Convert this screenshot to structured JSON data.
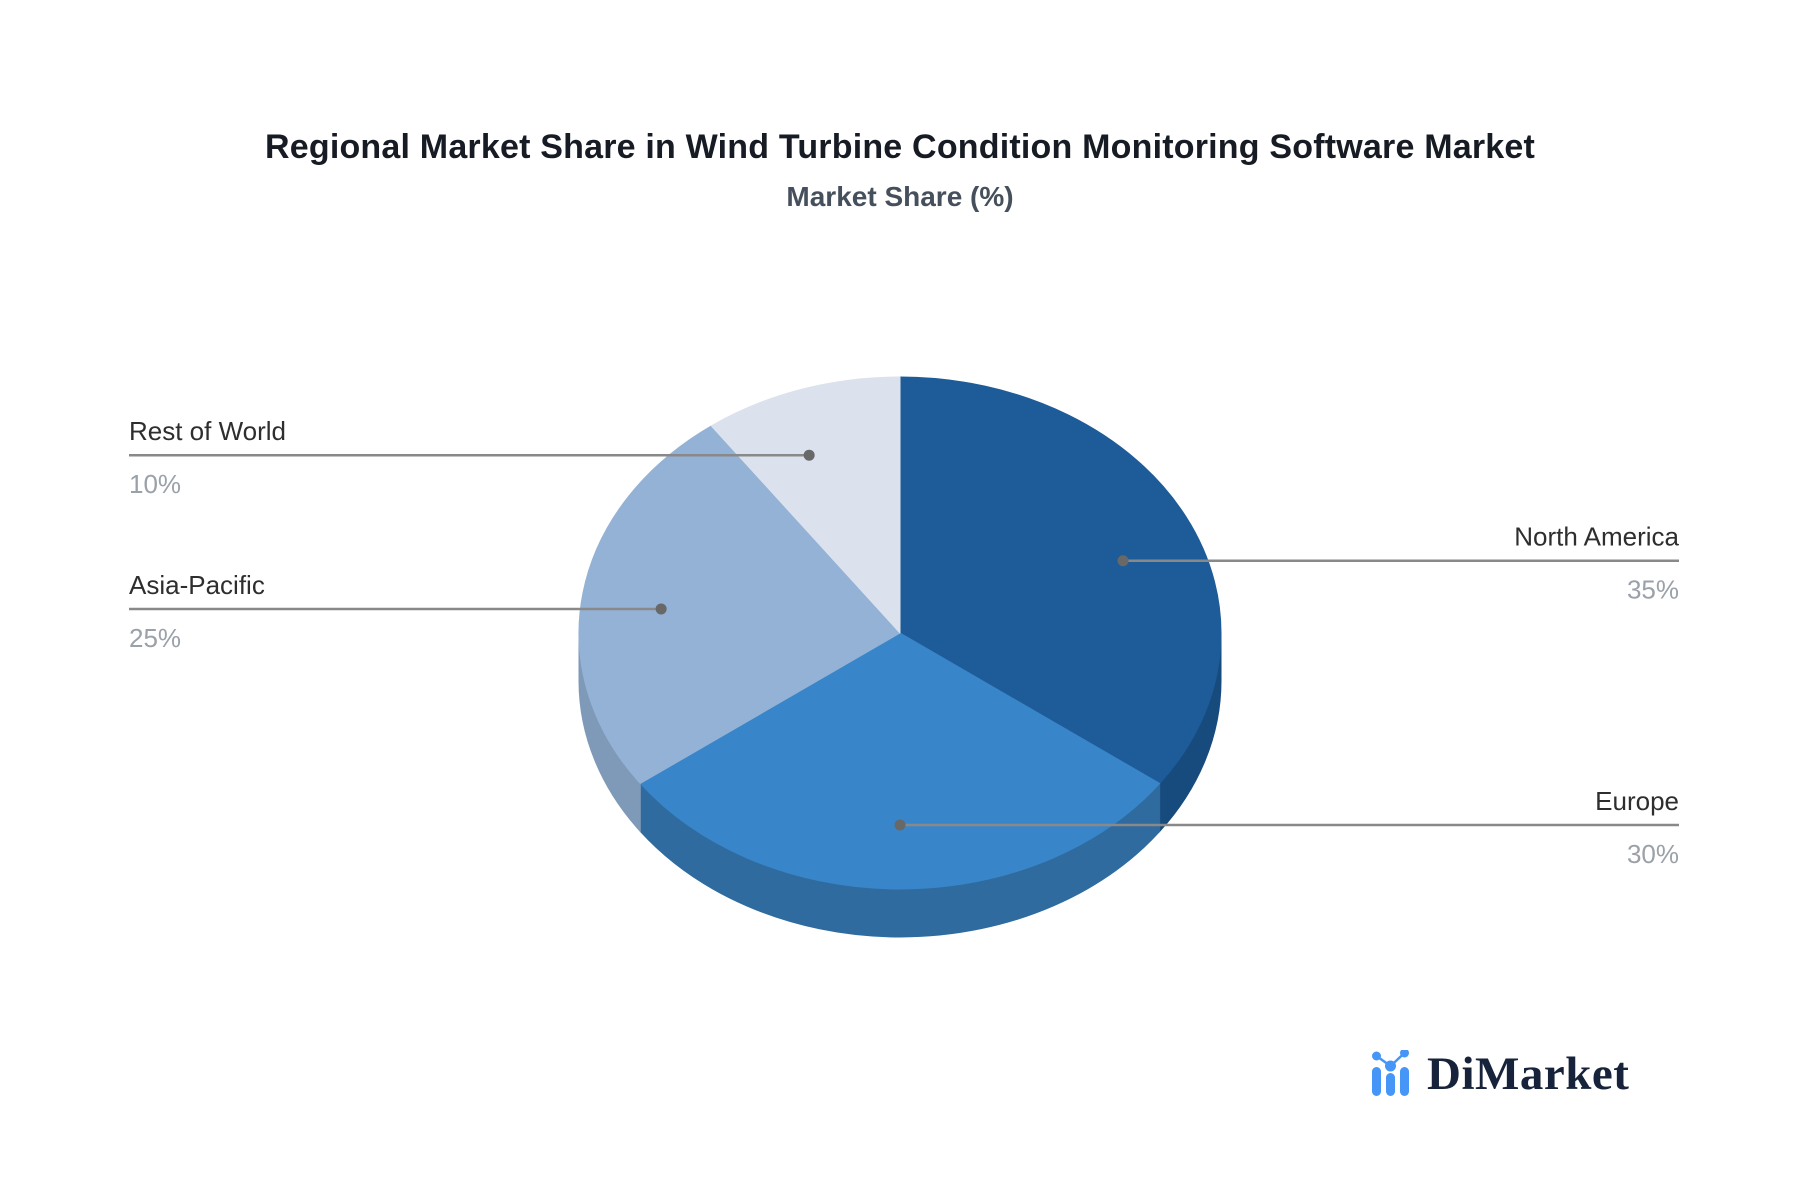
{
  "title": "Regional Market Share in Wind Turbine Condition Monitoring Software Market",
  "subtitle": "Market Share (%)",
  "chart_data": {
    "type": "pie",
    "style": "3d",
    "start_angle_deg": 0,
    "direction": "clockwise",
    "categories": [
      "North America",
      "Europe",
      "Asia-Pacific",
      "Rest of World"
    ],
    "values": [
      35,
      30,
      25,
      10
    ],
    "value_labels": [
      "35%",
      "30%",
      "25%",
      "10%"
    ],
    "unit": "%",
    "colors": [
      "#1E5C99",
      "#3886C9",
      "#93B2D6",
      "#DBE2ED"
    ],
    "side_colors": [
      "#174B7E",
      "#2F6B9E",
      "#7F9AB8",
      "#C3CEDE"
    ],
    "label_side": [
      "right",
      "right",
      "left",
      "left"
    ],
    "legend_position": "none",
    "grid": false
  },
  "label_style": {
    "name_color": "#2e2e2e",
    "value_color": "#9aa1a8",
    "line_color": "#898989",
    "dot_color": "#686868"
  },
  "brand": {
    "name": "DiMarket",
    "icon": "bar-line-chart-icon",
    "icon_color": "#4596F7",
    "text_color": "#16233b"
  }
}
